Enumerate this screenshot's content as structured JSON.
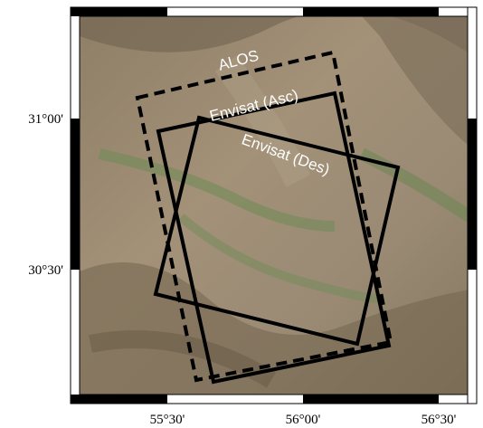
{
  "map": {
    "x_labels": [
      "55°30'",
      "56°00'",
      "56°30'"
    ],
    "y_labels": [
      "31°00'",
      "30°30'"
    ],
    "footprints": [
      "ALOS",
      "Envisat (Asc)",
      "Envisat (Des)"
    ]
  }
}
